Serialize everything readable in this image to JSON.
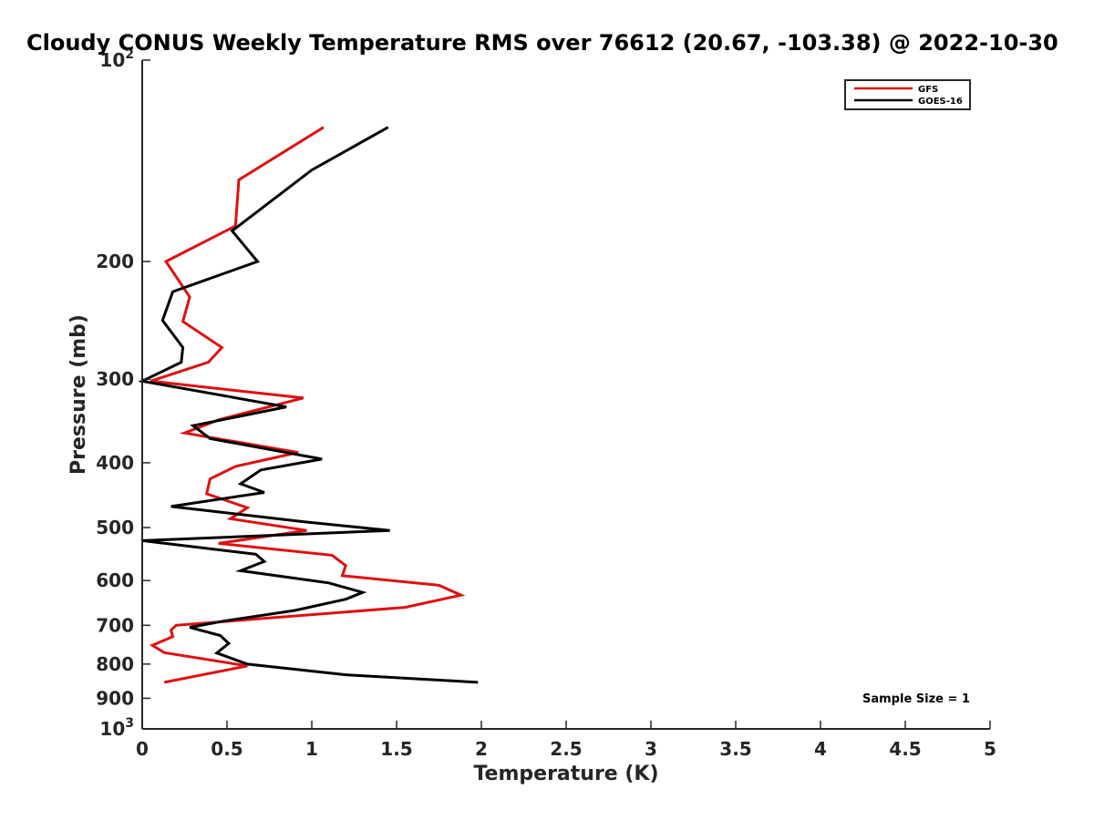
{
  "chart_data": {
    "type": "line",
    "title": "Cloudy CONUS Weekly Temperature RMS over 76612 (20.67, -103.38) @ 2022-10-30",
    "xlabel": "Temperature (K)",
    "ylabel": "Pressure (mb)",
    "xlim": [
      0,
      5
    ],
    "ylim": [
      100,
      1000
    ],
    "yscale": "log",
    "y_reversed": true,
    "grid": false,
    "legend_position": "top-right",
    "x_ticks": [
      0,
      0.5,
      1,
      1.5,
      2,
      2.5,
      3,
      3.5,
      4,
      4.5,
      5
    ],
    "x_tick_labels": [
      "0",
      "0.5",
      "1",
      "1.5",
      "2",
      "2.5",
      "3",
      "3.5",
      "4",
      "4.5",
      "5"
    ],
    "y_ticks": [
      {
        "value": 100,
        "base": "10",
        "exp": "2"
      },
      {
        "value": 200,
        "label": "200"
      },
      {
        "value": 300,
        "label": "300"
      },
      {
        "value": 400,
        "label": "400"
      },
      {
        "value": 500,
        "label": "500"
      },
      {
        "value": 600,
        "label": "600"
      },
      {
        "value": 700,
        "label": "700"
      },
      {
        "value": 800,
        "label": "800"
      },
      {
        "value": 900,
        "label": "900"
      },
      {
        "value": 1000,
        "base": "10",
        "exp": "3"
      }
    ],
    "annotation": "Sample Size = 1",
    "series": [
      {
        "name": "GFS",
        "color": "#e01010",
        "points": [
          [
            1.07,
            126
          ],
          [
            0.57,
            151
          ],
          [
            0.55,
            177
          ],
          [
            0.14,
            200
          ],
          [
            0.28,
            226
          ],
          [
            0.24,
            246
          ],
          [
            0.47,
            269
          ],
          [
            0.39,
            283
          ],
          [
            0.05,
            302
          ],
          [
            0.95,
            320
          ],
          [
            0.45,
            345
          ],
          [
            0.25,
            361
          ],
          [
            0.92,
            386
          ],
          [
            0.55,
            405
          ],
          [
            0.4,
            423
          ],
          [
            0.38,
            445
          ],
          [
            0.62,
            467
          ],
          [
            0.52,
            485
          ],
          [
            0.97,
            505
          ],
          [
            0.45,
            528
          ],
          [
            1.12,
            550
          ],
          [
            1.2,
            570
          ],
          [
            1.18,
            590
          ],
          [
            1.75,
            610
          ],
          [
            1.88,
            631
          ],
          [
            1.55,
            658
          ],
          [
            0.2,
            700
          ],
          [
            0.17,
            712
          ],
          [
            0.18,
            728
          ],
          [
            0.06,
            750
          ],
          [
            0.13,
            769
          ],
          [
            0.62,
            805
          ],
          [
            0.13,
            852
          ]
        ]
      },
      {
        "name": "GOES-16",
        "color": "#000000",
        "points": [
          [
            1.45,
            126
          ],
          [
            1.0,
            146
          ],
          [
            0.53,
            180
          ],
          [
            0.68,
            200
          ],
          [
            0.18,
            222
          ],
          [
            0.12,
            245
          ],
          [
            0.24,
            269
          ],
          [
            0.23,
            283
          ],
          [
            0.0,
            302
          ],
          [
            0.85,
            330
          ],
          [
            0.3,
            352
          ],
          [
            0.4,
            368
          ],
          [
            1.06,
            395
          ],
          [
            0.7,
            410
          ],
          [
            0.58,
            430
          ],
          [
            0.72,
            443
          ],
          [
            0.17,
            465
          ],
          [
            0.95,
            490
          ],
          [
            1.46,
            505
          ],
          [
            0.0,
            523
          ],
          [
            0.67,
            548
          ],
          [
            0.72,
            562
          ],
          [
            0.58,
            580
          ],
          [
            1.1,
            605
          ],
          [
            1.3,
            625
          ],
          [
            1.2,
            640
          ],
          [
            0.9,
            665
          ],
          [
            0.48,
            690
          ],
          [
            0.28,
            705
          ],
          [
            0.46,
            725
          ],
          [
            0.51,
            745
          ],
          [
            0.44,
            770
          ],
          [
            0.62,
            800
          ],
          [
            1.2,
            830
          ],
          [
            1.98,
            852
          ]
        ]
      }
    ]
  }
}
